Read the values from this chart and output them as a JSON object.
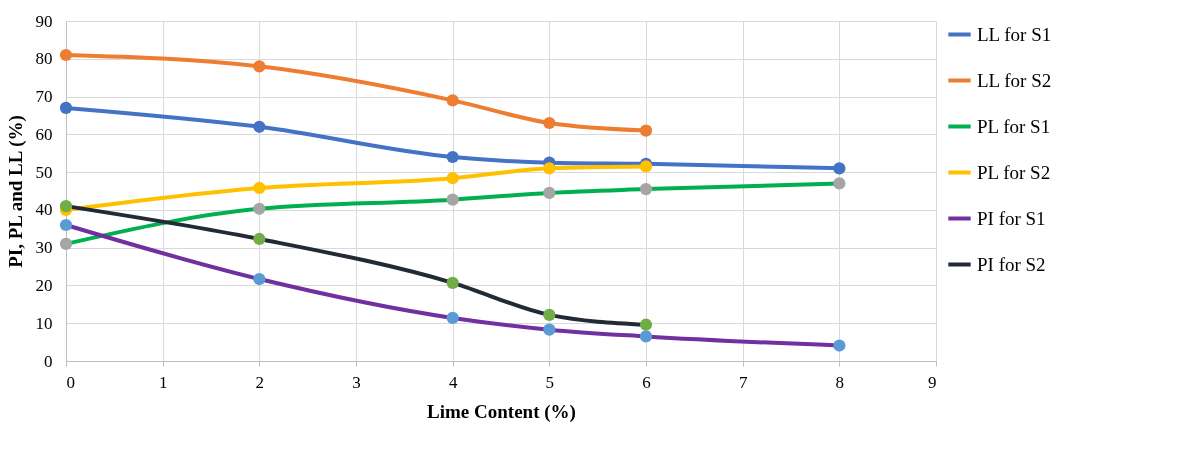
{
  "chart_data": {
    "type": "line",
    "xlabel": "Lime Content (%)",
    "ylabel": "PI, PL and LL (%)",
    "xlim": [
      0,
      9
    ],
    "xticks": [
      0,
      1,
      2,
      3,
      4,
      5,
      6,
      7,
      8,
      9
    ],
    "ylim": [
      0,
      90
    ],
    "yticks": [
      0,
      10,
      20,
      30,
      40,
      50,
      60,
      70,
      80,
      90
    ],
    "grid": true,
    "legend": "right",
    "marker": "circle",
    "line_style": "solid",
    "series": [
      {
        "name": "LL for S1",
        "color": "#4472c4",
        "x": [
          0,
          2,
          4,
          5,
          6,
          8
        ],
        "values": [
          67,
          62,
          54,
          52.5,
          52.2,
          51
        ]
      },
      {
        "name": "LL for S2",
        "color": "#ed7d31",
        "x": [
          0,
          2,
          4,
          5,
          6
        ],
        "values": [
          81,
          78,
          69,
          63,
          61
        ]
      },
      {
        "name": "PL for S1",
        "color": "#00b050",
        "colors": [
          "#a5a5a5",
          "#a5a5a5",
          "#a5a5a5",
          "#a5a5a5",
          "#a5a5a5",
          "#a5a5a5"
        ],
        "x": [
          0,
          2,
          4,
          5,
          6,
          8
        ],
        "values": [
          31,
          40.3,
          42.7,
          44.5,
          45.5,
          47
        ]
      },
      {
        "name": "PL for S2",
        "color": "#ffc000",
        "x": [
          0,
          2,
          4,
          5,
          6
        ],
        "values": [
          40,
          45.8,
          48.4,
          51,
          51.5
        ]
      },
      {
        "name": "PI for S1",
        "color": "#7030a0",
        "colors": [
          "#5b9bd5",
          "#5b9bd5",
          "#5b9bd5",
          "#5b9bd5",
          "#5b9bd5",
          "#5b9bd5"
        ],
        "x": [
          0,
          2,
          4,
          5,
          6,
          8
        ],
        "values": [
          36,
          21.7,
          11.4,
          8.3,
          6.5,
          4.1
        ]
      },
      {
        "name": "PI for S2",
        "color": "#222a35",
        "colors": [
          "#70ad47",
          "#70ad47",
          "#70ad47",
          "#70ad47",
          "#70ad47"
        ],
        "x": [
          0,
          2,
          4,
          5,
          6
        ],
        "values": [
          41,
          32.3,
          20.7,
          12.2,
          9.6
        ]
      }
    ]
  }
}
